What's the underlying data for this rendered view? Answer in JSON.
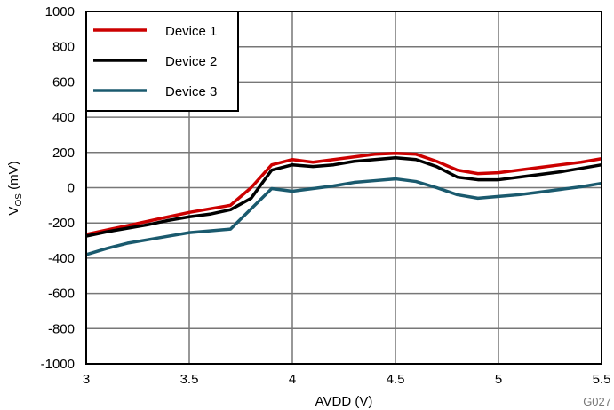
{
  "chart_data": {
    "type": "line",
    "xlabel": "AVDD (V)",
    "ylabel_main": "V",
    "ylabel_sub": "OS",
    "ylabel_unit": " (mV)",
    "xlim": [
      3,
      5.5
    ],
    "ylim": [
      -1000,
      1000
    ],
    "xticks": [
      "3",
      "3.5",
      "4",
      "4.5",
      "5",
      "5.5"
    ],
    "yticks": [
      "-1000",
      "-800",
      "-600",
      "-400",
      "-200",
      "0",
      "200",
      "400",
      "600",
      "800",
      "1000"
    ],
    "grid": true,
    "legend_position": "top-left",
    "x": [
      3,
      3.1,
      3.2,
      3.3,
      3.4,
      3.5,
      3.6,
      3.7,
      3.8,
      3.9,
      4.0,
      4.1,
      4.2,
      4.3,
      4.4,
      4.5,
      4.6,
      4.7,
      4.8,
      4.9,
      5.0,
      5.1,
      5.2,
      5.3,
      5.4,
      5.5
    ],
    "series": [
      {
        "name": "Device 1",
        "color": "#cc0000",
        "values": [
          -265,
          -240,
          -215,
          -190,
          -165,
          -140,
          -120,
          -100,
          0,
          130,
          160,
          145,
          160,
          175,
          190,
          195,
          190,
          150,
          100,
          80,
          85,
          100,
          115,
          130,
          145,
          165
        ]
      },
      {
        "name": "Device 2",
        "color": "#000000",
        "values": [
          -275,
          -250,
          -230,
          -210,
          -185,
          -165,
          -150,
          -125,
          -60,
          100,
          130,
          120,
          130,
          150,
          160,
          170,
          160,
          120,
          60,
          45,
          45,
          60,
          75,
          90,
          110,
          130
        ]
      },
      {
        "name": "Device 3",
        "color": "#1a5a6e",
        "values": [
          -380,
          -345,
          -315,
          -295,
          -275,
          -255,
          -245,
          -235,
          -120,
          -5,
          -20,
          -5,
          10,
          30,
          40,
          50,
          35,
          0,
          -40,
          -60,
          -50,
          -40,
          -25,
          -10,
          5,
          25
        ]
      }
    ],
    "annotation": "G027"
  }
}
